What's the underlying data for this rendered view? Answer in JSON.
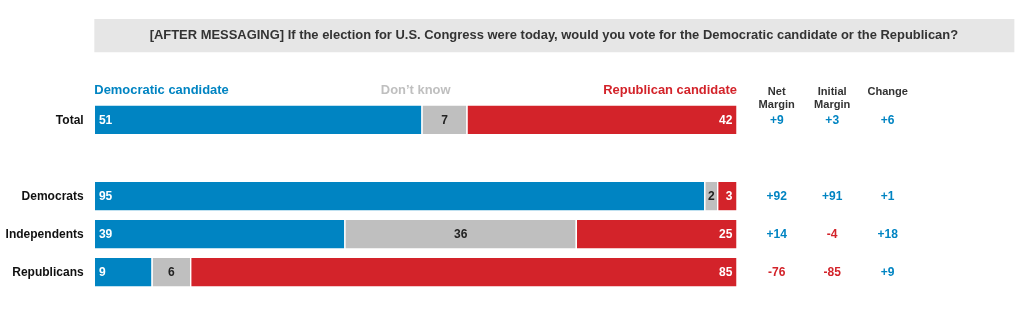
{
  "chart_data": [
    {
      "type": "bar",
      "orientation": "horizontal",
      "stacked": true,
      "legend": "top",
      "data_labels": true,
      "title": "[AFTER MESSAGING] If the election for U.S. Congress were today, would you vote for the Democratic candidate or the Republican?",
      "categories": [
        "Total",
        null,
        "Democrats",
        "Independents",
        "Republicans"
      ],
      "series": [
        {
          "name": "Democratic candidate",
          "color": "#0084c2",
          "values": [
            51,
            null,
            95,
            39,
            9
          ]
        },
        {
          "name": "Don’t know",
          "color": "#bfbfbf",
          "values": [
            7,
            null,
            2,
            36,
            6
          ]
        },
        {
          "name": "Republican candidate",
          "color": "#d3232a",
          "values": [
            42,
            null,
            3,
            25,
            85
          ]
        }
      ]
    },
    {
      "type": "other",
      "annotations": [
        "Net Margin",
        "Initial Margin",
        "Change",
        "+9",
        "+3",
        "+6",
        "+92",
        "+91",
        "+1",
        "+14",
        "-4",
        "+18",
        "-76",
        "-85",
        "+9"
      ],
      "colors": [
        "#333333",
        "#333333",
        "#333333",
        "#0084c2",
        "#0084c2",
        "#0084c2",
        "#0084c2",
        "#0084c2",
        "#0084c2",
        "#0084c2",
        "#d3232a",
        "#0084c2",
        "#d3232a",
        "#d3232a",
        "#0084c2"
      ]
    }
  ]
}
